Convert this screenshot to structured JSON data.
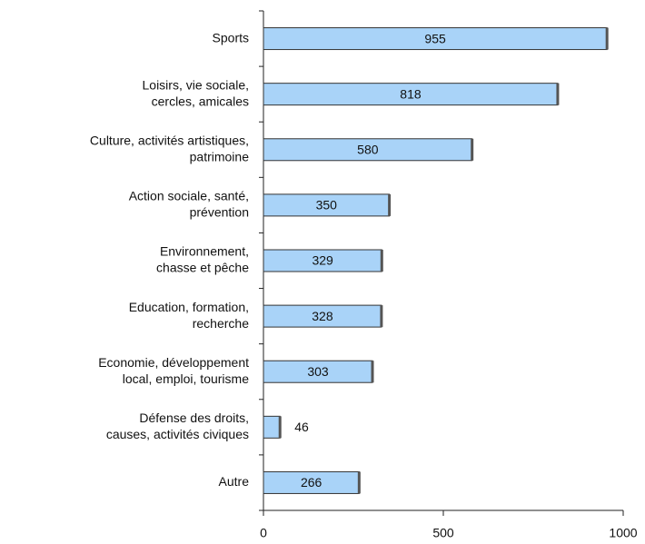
{
  "chart_data": {
    "type": "barh",
    "categories": [
      [
        "Sports"
      ],
      [
        "Loisirs, vie sociale,",
        "cercles, amicales"
      ],
      [
        "Culture, activités artistiques,",
        "patrimoine"
      ],
      [
        "Action sociale, santé,",
        "prévention"
      ],
      [
        "Environnement,",
        "chasse et pêche"
      ],
      [
        "Education, formation,",
        "recherche"
      ],
      [
        "Economie, développement",
        "local, emploi, tourisme"
      ],
      [
        "Défense des droits,",
        "causes, activités civiques"
      ],
      [
        "Autre"
      ]
    ],
    "values": [
      955,
      818,
      580,
      350,
      329,
      328,
      303,
      46,
      266
    ],
    "color": "#a9d3f8",
    "xlim": [
      0,
      1000
    ],
    "xticks": [
      0,
      500,
      1000
    ],
    "grid": false
  }
}
